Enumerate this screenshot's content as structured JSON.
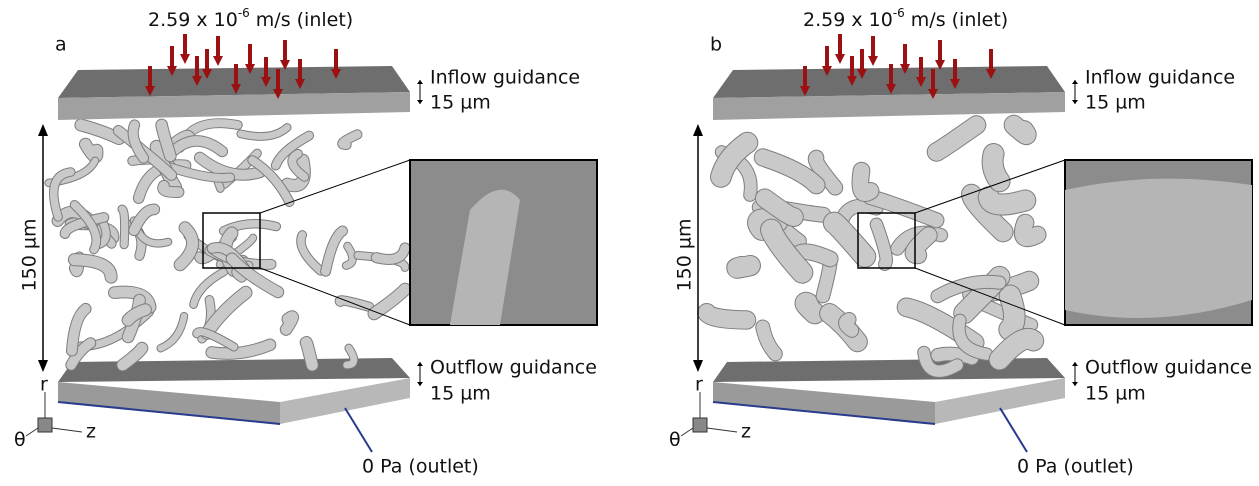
{
  "panels": [
    {
      "label": "a",
      "inlet": {
        "base": "2.59 x 10",
        "exponent": "-6",
        "unit": "m/s (inlet)"
      },
      "inflow": {
        "name": "Inflow guidance",
        "size": "15 µm"
      },
      "height": "150 µm",
      "outflow": {
        "name": "Outflow guidance",
        "size": "15 µm"
      },
      "outlet": "0 Pa (outlet)",
      "axes": {
        "r": "r",
        "theta": "θ",
        "z": "z"
      }
    },
    {
      "label": "b",
      "inlet": {
        "base": "2.59 x 10",
        "exponent": "-6",
        "unit": "m/s (inlet)"
      },
      "inflow": {
        "name": "Inflow guidance",
        "size": "15 µm"
      },
      "height": "150 µm",
      "outflow": {
        "name": "Outflow guidance",
        "size": "15 µm"
      },
      "outlet": "0 Pa (outlet)",
      "axes": {
        "r": "r",
        "theta": "θ",
        "z": "z"
      }
    }
  ]
}
